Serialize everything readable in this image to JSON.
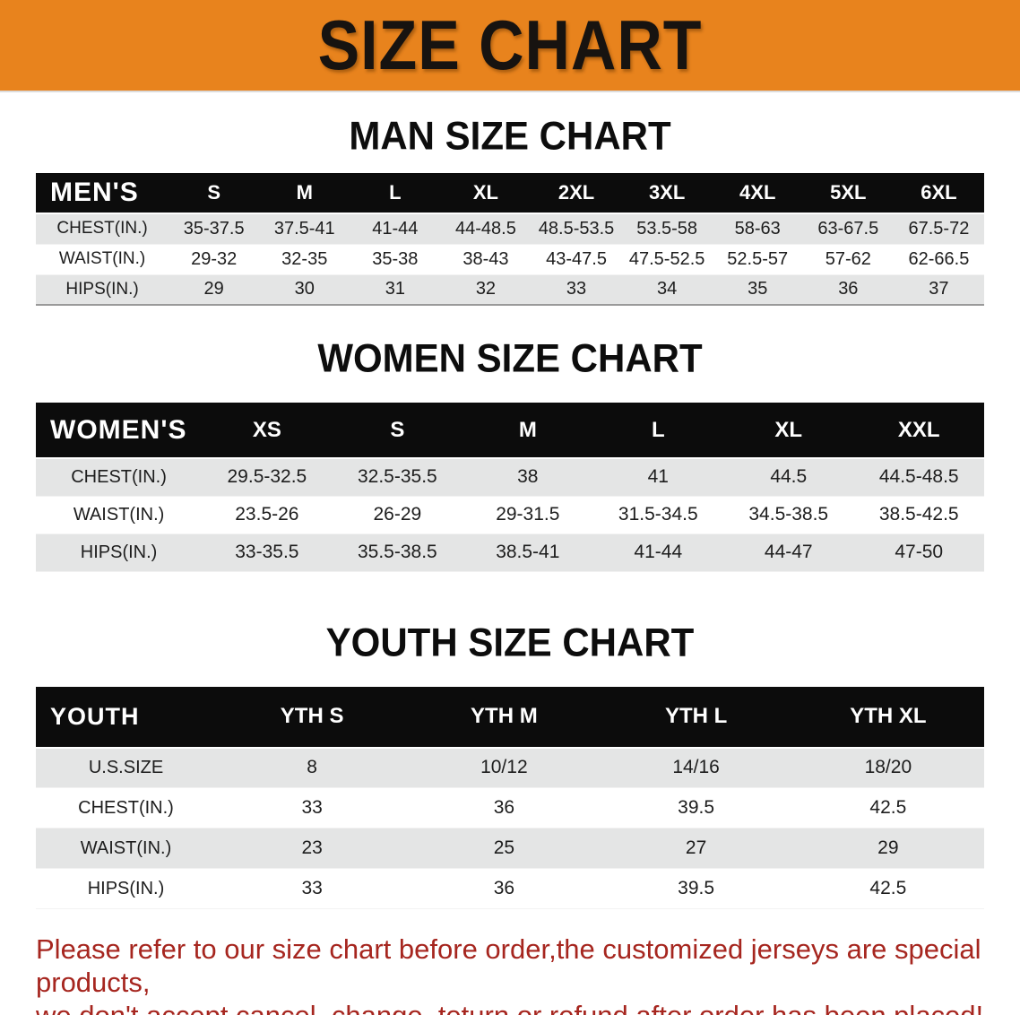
{
  "banner": {
    "title": "SIZE CHART",
    "bg_color": "#E8831D",
    "text_color": "#171310"
  },
  "sections": [
    {
      "heading": "MAN SIZE CHART",
      "label": "MEN'S",
      "columns": [
        "S",
        "M",
        "L",
        "XL",
        "2XL",
        "3XL",
        "4XL",
        "5XL",
        "6XL"
      ],
      "rows": [
        {
          "label": "CHEST(IN.)",
          "values": [
            "35-37.5",
            "37.5-41",
            "41-44",
            "44-48.5",
            "48.5-53.5",
            "53.5-58",
            "58-63",
            "63-67.5",
            "67.5-72"
          ]
        },
        {
          "label": "WAIST(IN.)",
          "values": [
            "29-32",
            "32-35",
            "35-38",
            "38-43",
            "43-47.5",
            "47.5-52.5",
            "52.5-57",
            "57-62",
            "62-66.5"
          ]
        },
        {
          "label": "HIPS(IN.)",
          "values": [
            "29",
            "30",
            "31",
            "32",
            "33",
            "34",
            "35",
            "36",
            "37"
          ]
        }
      ]
    },
    {
      "heading": "WOMEN SIZE CHART",
      "label": "WOMEN'S",
      "columns": [
        "XS",
        "S",
        "M",
        "L",
        "XL",
        "XXL"
      ],
      "rows": [
        {
          "label": "CHEST(IN.)",
          "values": [
            "29.5-32.5",
            "32.5-35.5",
            "38",
            "41",
            "44.5",
            "44.5-48.5"
          ]
        },
        {
          "label": "WAIST(IN.)",
          "values": [
            "23.5-26",
            "26-29",
            "29-31.5",
            "31.5-34.5",
            "34.5-38.5",
            "38.5-42.5"
          ]
        },
        {
          "label": "HIPS(IN.)",
          "values": [
            "33-35.5",
            "35.5-38.5",
            "38.5-41",
            "41-44",
            "44-47",
            "47-50"
          ]
        }
      ]
    },
    {
      "heading": "YOUTH SIZE CHART",
      "label": "YOUTH",
      "columns": [
        "YTH S",
        "YTH M",
        "YTH L",
        "YTH XL"
      ],
      "rows": [
        {
          "label": "U.S.SIZE",
          "values": [
            "8",
            "10/12",
            "14/16",
            "18/20"
          ]
        },
        {
          "label": "CHEST(IN.)",
          "values": [
            "33",
            "36",
            "39.5",
            "42.5"
          ]
        },
        {
          "label": "WAIST(IN.)",
          "values": [
            "23",
            "25",
            "27",
            "29"
          ]
        },
        {
          "label": "HIPS(IN.)",
          "values": [
            "33",
            "36",
            "39.5",
            "42.5"
          ]
        }
      ]
    }
  ],
  "footer": {
    "lines": [
      "Please refer to our size chart before order,the customized jerseys are special products,",
      "we don't accept cancel, change, teturn or refund after order has been placed!"
    ],
    "text_color": "#A6261F"
  }
}
